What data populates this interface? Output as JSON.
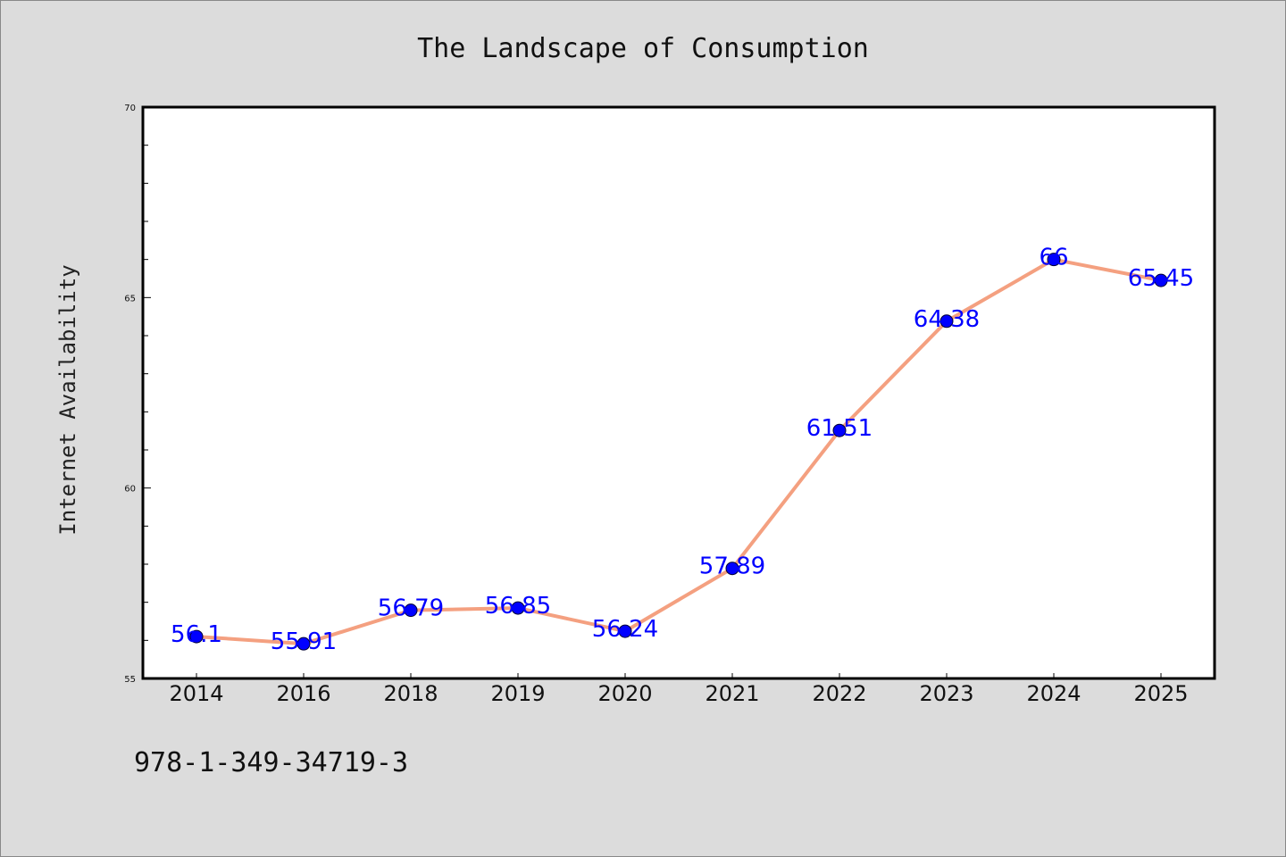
{
  "chart_data": {
    "type": "line",
    "title": "The Landscape of Consumption",
    "xlabel": "",
    "ylabel": "Internet Availability",
    "categories": [
      "2014",
      "2016",
      "2018",
      "2019",
      "2020",
      "2021",
      "2022",
      "2023",
      "2024",
      "2025"
    ],
    "series": [
      {
        "values": [
          56.1,
          55.91,
          56.79,
          56.85,
          56.24,
          57.89,
          61.51,
          64.38,
          66,
          65.45
        ]
      }
    ],
    "data_labels": [
      "56.1",
      "55.91",
      "56.79",
      "56.85",
      "56.24",
      "57.89",
      "61.51",
      "64.38",
      "66",
      "65.45"
    ],
    "ylim": [
      55,
      70
    ],
    "yticks": [
      "55",
      "60",
      "65",
      "70"
    ],
    "grid": false,
    "legend": "none"
  },
  "footer": {
    "code": "978-1-349-34719-3"
  },
  "colors": {
    "background": "#dcdcdc",
    "plot_area": "#ffffff",
    "line": "#f4a080",
    "marker": "#0000ff",
    "data_label": "#0000ff"
  }
}
